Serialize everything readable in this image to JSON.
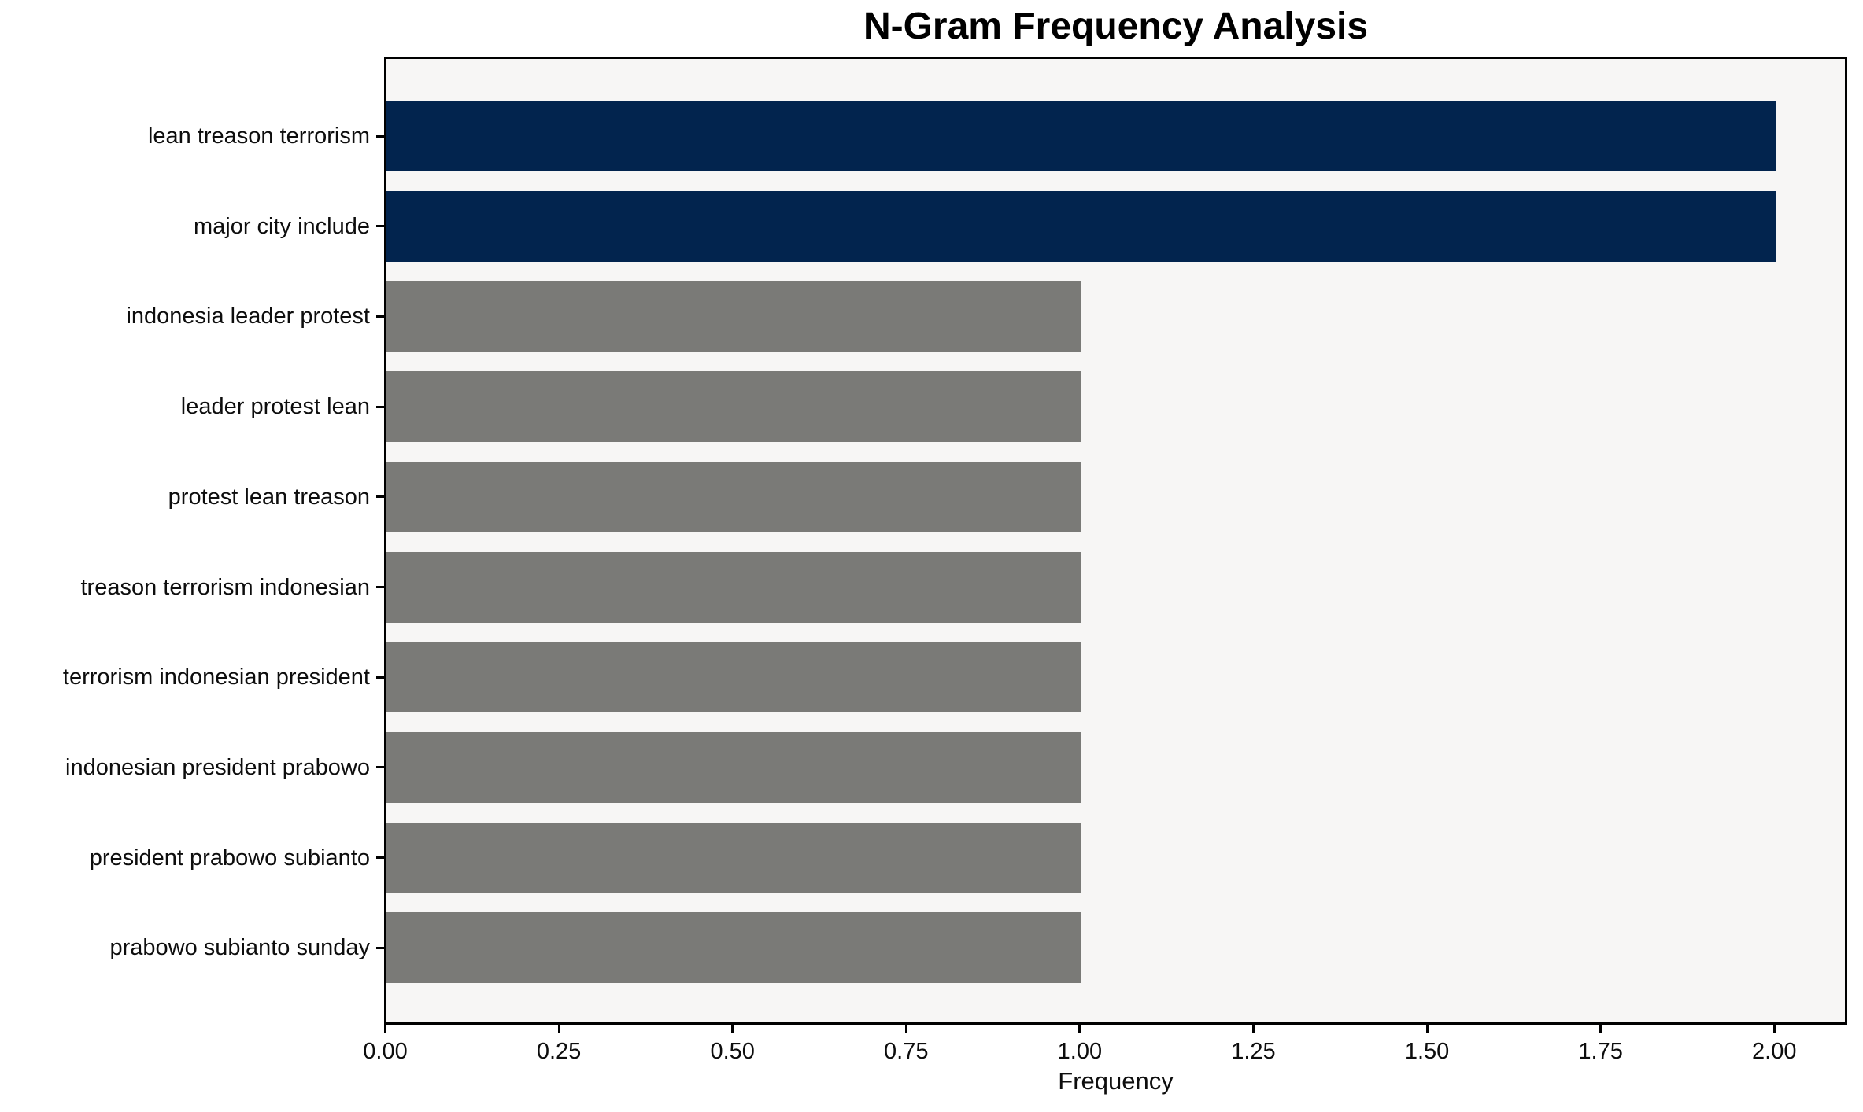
{
  "chart_data": {
    "type": "bar",
    "orientation": "horizontal",
    "title": "N-Gram Frequency Analysis",
    "xlabel": "Frequency",
    "ylabel": "",
    "categories": [
      "lean treason terrorism",
      "major city include",
      "indonesia leader protest",
      "leader protest lean",
      "protest lean treason",
      "treason terrorism indonesian",
      "terrorism indonesian president",
      "indonesian president prabowo",
      "president prabowo subianto",
      "prabowo subianto sunday"
    ],
    "values": [
      2,
      2,
      1,
      1,
      1,
      1,
      1,
      1,
      1,
      1
    ],
    "bar_colors": [
      "#02244e",
      "#02244e",
      "#7a7a77",
      "#7a7a77",
      "#7a7a77",
      "#7a7a77",
      "#7a7a77",
      "#7a7a77",
      "#7a7a77",
      "#7a7a77"
    ],
    "x_tick_labels": [
      "0.00",
      "0.25",
      "0.50",
      "0.75",
      "1.00",
      "1.25",
      "1.50",
      "1.75",
      "2.00"
    ],
    "x_tick_values": [
      0,
      0.25,
      0.5,
      0.75,
      1.0,
      1.25,
      1.5,
      1.75,
      2.0
    ],
    "xlim": [
      0,
      2.1
    ],
    "grid": false,
    "legend": "none",
    "colors": {
      "highlight": "#02244e",
      "base": "#7a7a77",
      "plot_background": "#f7f6f5",
      "figure_background": "#ffffff",
      "axis": "#000000",
      "text": "#000000"
    }
  }
}
